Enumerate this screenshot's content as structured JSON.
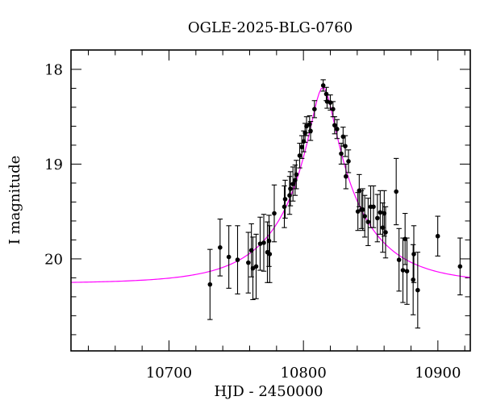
{
  "figure": {
    "background": "#ffffff",
    "frame_color": "#000000",
    "point_color": "#000000",
    "errorbar_color": "#000000",
    "model_color": "#ff00ff"
  },
  "chart_data": {
    "type": "scatter",
    "title": "OGLE-2025-BLG-0760",
    "xlabel": "HJD - 2450000",
    "ylabel": "I magnitude",
    "xlim": [
      10627.1,
      10924.1
    ],
    "ylim": [
      20.971,
      17.796
    ],
    "y_axis_inverted": true,
    "grid": false,
    "x_major_ticks": [
      10700,
      10800,
      10900
    ],
    "x_minor_step": 20,
    "y_major_ticks": [
      18,
      19,
      20
    ],
    "y_minor_step": 0.2,
    "points_format": [
      "hjd_minus_2450000",
      "I_mag",
      "err_mag"
    ],
    "points": [
      [
        10730.5,
        20.27,
        0.37
      ],
      [
        10738.0,
        19.88,
        0.3
      ],
      [
        10744.5,
        19.98,
        0.33
      ],
      [
        10751.0,
        20.01,
        0.36
      ],
      [
        10759.0,
        20.04,
        0.32
      ],
      [
        10761.3,
        19.91,
        0.28
      ],
      [
        10762.4,
        20.1,
        0.33
      ],
      [
        10764.8,
        20.08,
        0.34
      ],
      [
        10767.8,
        19.84,
        0.28
      ],
      [
        10770.5,
        19.83,
        0.3
      ],
      [
        10773.2,
        19.93,
        0.32
      ],
      [
        10774.4,
        19.81,
        0.27
      ],
      [
        10774.9,
        19.95,
        0.3
      ],
      [
        10778.3,
        19.52,
        0.3
      ],
      [
        10785.8,
        19.45,
        0.22
      ],
      [
        10786.4,
        19.37,
        0.2
      ],
      [
        10789.7,
        19.33,
        0.2
      ],
      [
        10790.3,
        19.26,
        0.18
      ],
      [
        10792.2,
        19.21,
        0.18
      ],
      [
        10793.8,
        19.17,
        0.16
      ],
      [
        10794.7,
        19.11,
        0.15
      ],
      [
        10797.2,
        18.91,
        0.13
      ],
      [
        10798.8,
        18.82,
        0.12
      ],
      [
        10800.2,
        18.76,
        0.11
      ],
      [
        10801.2,
        18.67,
        0.1
      ],
      [
        10802.3,
        18.6,
        0.1
      ],
      [
        10804.6,
        18.58,
        0.09
      ],
      [
        10805.3,
        18.65,
        0.1
      ],
      [
        10808.2,
        18.42,
        0.09
      ],
      [
        10814.7,
        18.17,
        0.06
      ],
      [
        10817.0,
        18.26,
        0.07
      ],
      [
        10817.6,
        18.34,
        0.07
      ],
      [
        10820.0,
        18.35,
        0.08
      ],
      [
        10822.0,
        18.42,
        0.08
      ],
      [
        10823.2,
        18.59,
        0.09
      ],
      [
        10825.0,
        18.63,
        0.1
      ],
      [
        10828.1,
        18.89,
        0.11
      ],
      [
        10829.5,
        18.71,
        0.1
      ],
      [
        10831.1,
        18.81,
        0.11
      ],
      [
        10831.6,
        19.13,
        0.13
      ],
      [
        10833.5,
        18.97,
        0.12
      ],
      [
        10840.5,
        19.5,
        0.2
      ],
      [
        10841.5,
        19.28,
        0.17
      ],
      [
        10843.1,
        19.48,
        0.2
      ],
      [
        10844.1,
        19.48,
        0.22
      ],
      [
        10845.6,
        19.55,
        0.22
      ],
      [
        10848.1,
        19.61,
        0.25
      ],
      [
        10850.0,
        19.45,
        0.22
      ],
      [
        10852.1,
        19.45,
        0.22
      ],
      [
        10855.0,
        19.57,
        0.25
      ],
      [
        10857.1,
        19.51,
        0.23
      ],
      [
        10859.0,
        19.67,
        0.26
      ],
      [
        10860.1,
        19.52,
        0.24
      ],
      [
        10861.1,
        19.72,
        0.27
      ],
      [
        10869.0,
        19.29,
        0.35
      ],
      [
        10871.1,
        20.01,
        0.33
      ],
      [
        10874.0,
        20.12,
        0.34
      ],
      [
        10875.6,
        19.79,
        0.27
      ],
      [
        10877.0,
        20.13,
        0.35
      ],
      [
        10881.6,
        20.22,
        0.37
      ],
      [
        10882.1,
        19.95,
        0.3
      ],
      [
        10885.0,
        20.33,
        0.4
      ],
      [
        10899.9,
        19.76,
        0.21
      ],
      [
        10916.5,
        20.08,
        0.3
      ]
    ],
    "model": {
      "name": "paczynski-microlensing-curve",
      "t0": 10814.5,
      "tE": 55,
      "u0": 0.15,
      "I0": 20.26,
      "color": "#ff00ff"
    }
  }
}
